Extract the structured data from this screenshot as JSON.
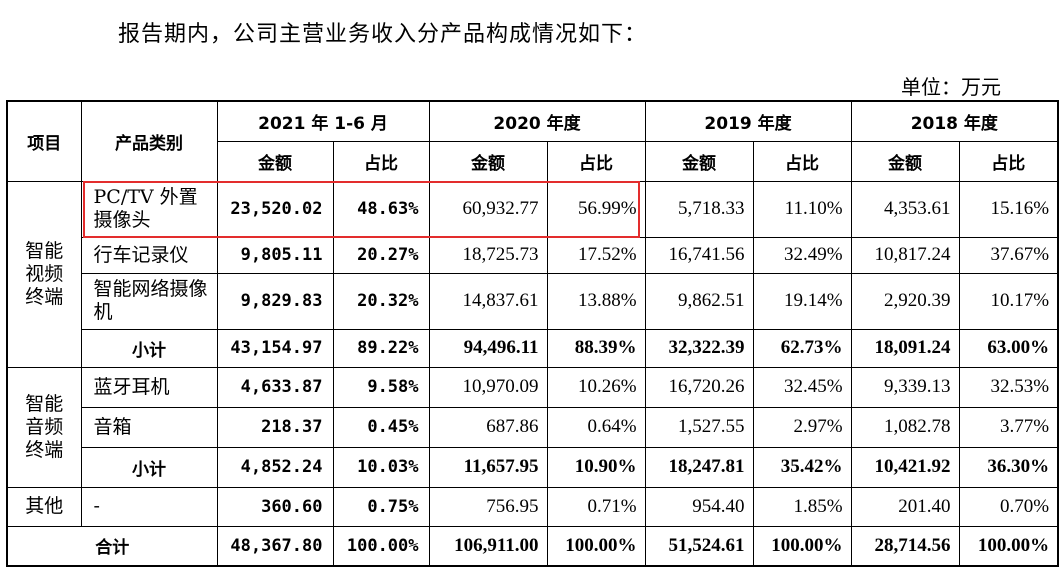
{
  "intro": "报告期内，公司主营业务收入分产品构成情况如下：",
  "unit": "单位：万元",
  "header": {
    "item": "项目",
    "category": "产品类别",
    "periods": [
      "2021 年 1-6 月",
      "2020 年度",
      "2019 年度",
      "2018 年度"
    ],
    "amount": "金额",
    "ratio": "占比"
  },
  "groups": [
    {
      "name": "智能视频终端",
      "rows": [
        {
          "product": "PC/TV 外置摄像头",
          "values": [
            "23,520.02",
            "48.63%",
            "60,932.77",
            "56.99%",
            "5,718.33",
            "11.10%",
            "4,353.61",
            "15.16%"
          ]
        },
        {
          "product": "行车记录仪",
          "values": [
            "9,805.11",
            "20.27%",
            "18,725.73",
            "17.52%",
            "16,741.56",
            "32.49%",
            "10,817.24",
            "37.67%"
          ]
        },
        {
          "product": "智能网络摄像机",
          "values": [
            "9,829.83",
            "20.32%",
            "14,837.61",
            "13.88%",
            "9,862.51",
            "19.14%",
            "2,920.39",
            "10.17%"
          ]
        }
      ],
      "subtotal": {
        "label": "小计",
        "values": [
          "43,154.97",
          "89.22%",
          "94,496.11",
          "88.39%",
          "32,322.39",
          "62.73%",
          "18,091.24",
          "63.00%"
        ]
      }
    },
    {
      "name": "智能音频终端",
      "rows": [
        {
          "product": "蓝牙耳机",
          "values": [
            "4,633.87",
            "9.58%",
            "10,970.09",
            "10.26%",
            "16,720.26",
            "32.45%",
            "9,339.13",
            "32.53%"
          ]
        },
        {
          "product": "音箱",
          "values": [
            "218.37",
            "0.45%",
            "687.86",
            "0.64%",
            "1,527.55",
            "2.97%",
            "1,082.78",
            "3.77%"
          ]
        }
      ],
      "subtotal": {
        "label": "小计",
        "values": [
          "4,852.24",
          "10.03%",
          "11,657.95",
          "10.90%",
          "18,247.81",
          "35.42%",
          "10,421.92",
          "36.30%"
        ]
      }
    }
  ],
  "other": {
    "name": "其他",
    "product": "-",
    "values": [
      "360.60",
      "0.75%",
      "756.95",
      "0.71%",
      "954.40",
      "1.85%",
      "201.40",
      "0.70%"
    ]
  },
  "total": {
    "label": "合计",
    "values": [
      "48,367.80",
      "100.00%",
      "106,911.00",
      "100.00%",
      "51,524.61",
      "100.00%",
      "28,714.56",
      "100.00%"
    ]
  },
  "highlight_color": "#e32d2d"
}
